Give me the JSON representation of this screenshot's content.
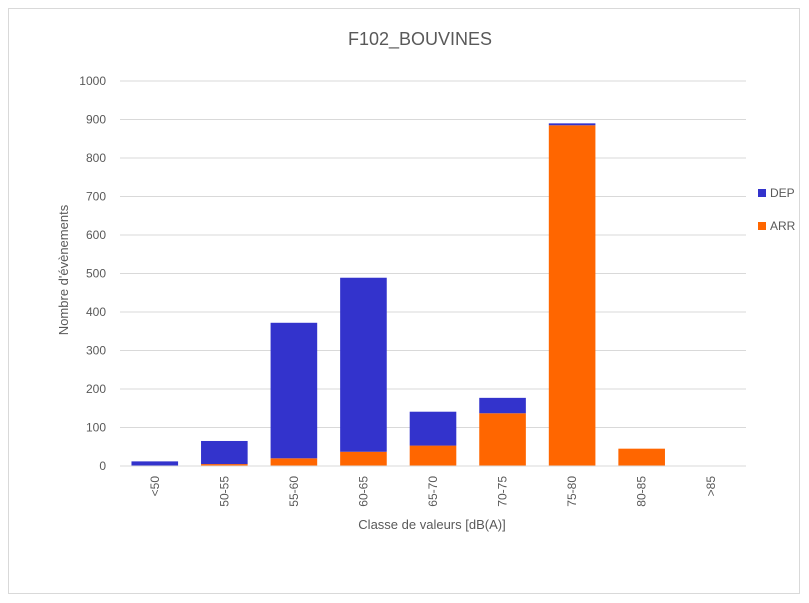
{
  "chart_data": {
    "type": "bar",
    "stacked": true,
    "title": "F102_BOUVINES",
    "xlabel": "Classe de valeurs [dB(A)]",
    "ylabel": "Nombre d'évènements",
    "categories": [
      "<50",
      "50-55",
      "55-60",
      "60-65",
      "65-70",
      "70-75",
      "75-80",
      "80-85",
      ">85"
    ],
    "ylim": [
      0,
      1000
    ],
    "yticks": [
      0,
      100,
      200,
      300,
      400,
      500,
      600,
      700,
      800,
      900,
      1000
    ],
    "grid": true,
    "legend_position": "right",
    "series": [
      {
        "name": "ARR",
        "color": "#ff6600",
        "values": [
          0,
          5,
          20,
          37,
          53,
          137,
          885,
          45,
          0
        ]
      },
      {
        "name": "DEP",
        "color": "#3333cc",
        "values": [
          12,
          60,
          352,
          452,
          88,
          40,
          5,
          0,
          0
        ]
      }
    ],
    "legend_order": [
      "DEP",
      "ARR"
    ]
  }
}
